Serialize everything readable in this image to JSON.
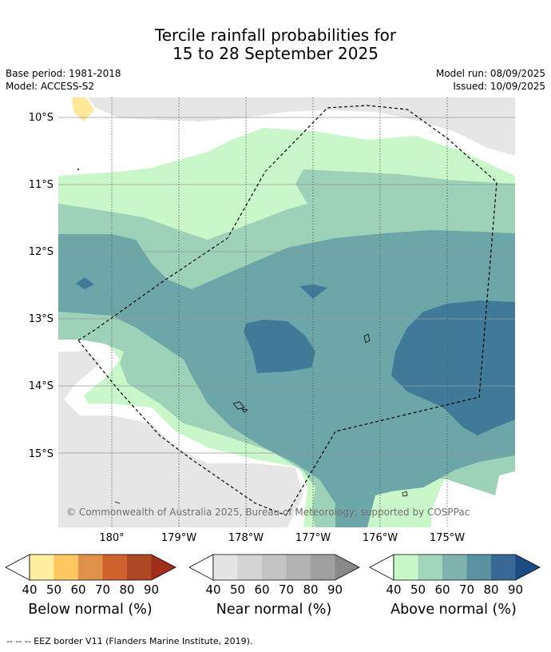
{
  "header": {
    "title_line1": "Tercile rainfall probabilities for",
    "title_line2": "15 to 28 September 2025",
    "base_period": "Base period: 1981-2018",
    "model": "Model: ACCESS-S2",
    "model_run": "Model run: 08/09/2025",
    "issued": "Issued: 10/09/2025"
  },
  "map": {
    "lat_labels": [
      "10°S",
      "11°S",
      "12°S",
      "13°S",
      "14°S",
      "15°S"
    ],
    "lon_labels": [
      "180°",
      "179°W",
      "178°W",
      "177°W",
      "176°W",
      "175°W"
    ],
    "copyright": "© Commonwealth of Australia 2025, Bureau of Meteorology, supported by COSPPac",
    "colors": {
      "land": "#e6e6e6",
      "above_40": "#c9f7c9",
      "above_50": "#9dd2b9",
      "above_60": "#6da6a8",
      "above_70": "#3f7b98",
      "below_50": "#ffe89a",
      "eez_border": "#000000"
    }
  },
  "colorbars": [
    {
      "name": "Below normal (%)",
      "ticks": [
        "40",
        "50",
        "60",
        "70",
        "80",
        "90"
      ],
      "colors": [
        "#ffeda0",
        "#fec760",
        "#e0914a",
        "#cf6330",
        "#ad4724",
        "#a02e1a"
      ]
    },
    {
      "name": "Near normal (%)",
      "ticks": [
        "40",
        "50",
        "60",
        "70",
        "80",
        "90"
      ],
      "colors": [
        "#e5e5e5",
        "#d4d4d4",
        "#c4c4c4",
        "#b2b2b2",
        "#a0a0a0",
        "#888888"
      ]
    },
    {
      "name": "Above normal (%)",
      "ticks": [
        "40",
        "50",
        "60",
        "70",
        "80",
        "90"
      ],
      "colors": [
        "#c9f7c9",
        "#a2d6bc",
        "#7fb4ae",
        "#5b92a2",
        "#386896",
        "#1a4b82"
      ]
    }
  ],
  "footnote": "-- -- -- EEZ border V11 (Flanders Marine Institute, 2019)."
}
